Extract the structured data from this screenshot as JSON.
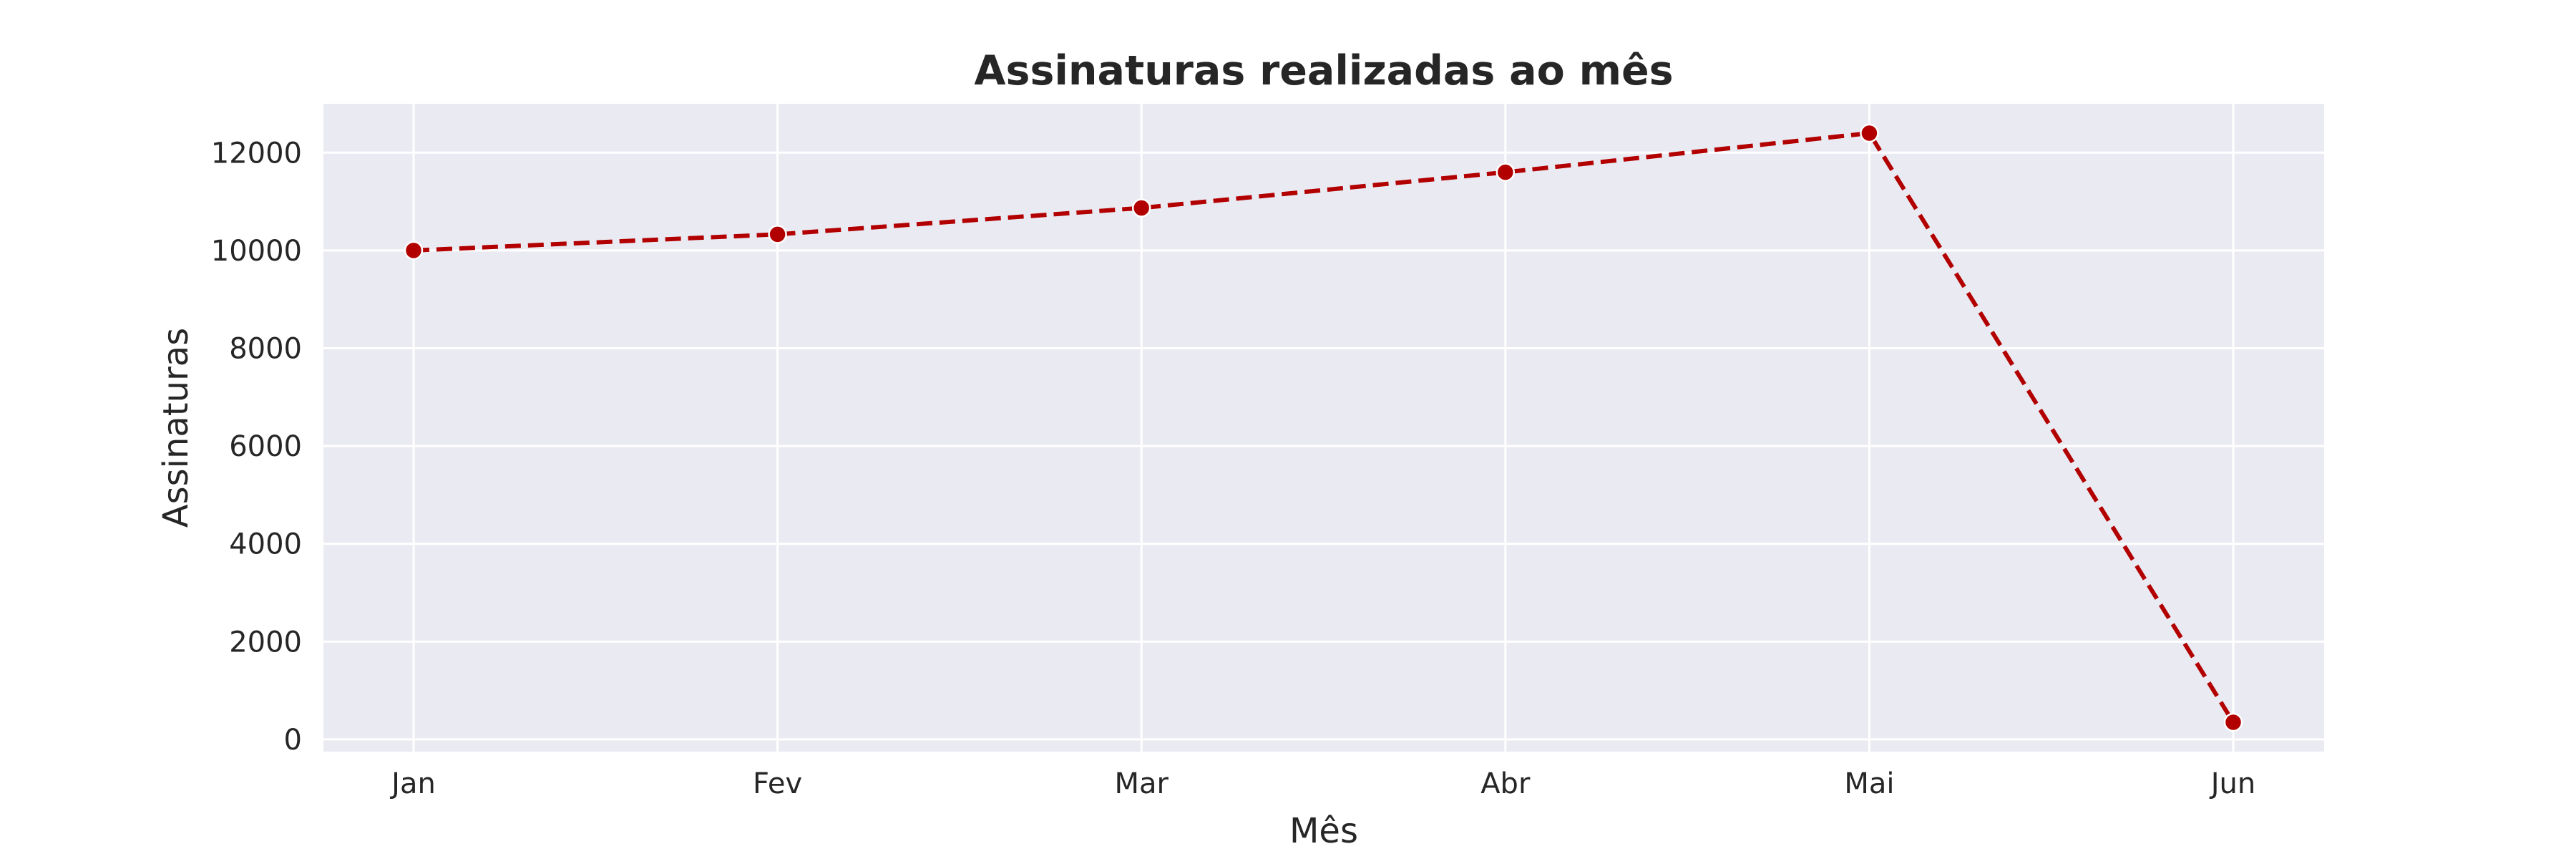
{
  "chart_data": {
    "type": "line",
    "title": "Assinaturas realizadas ao mês",
    "xlabel": "Mês",
    "ylabel": "Assinaturas",
    "categories": [
      "Jan",
      "Fev",
      "Mar",
      "Abr",
      "Mai",
      "Jun"
    ],
    "series": [
      {
        "values": [
          10000,
          10330,
          10870,
          11600,
          12400,
          350
        ],
        "color": "#b20000",
        "line_style": "dashed",
        "marker": "circle"
      }
    ],
    "ylim": [
      -250,
      13000
    ],
    "yticks": [
      0,
      2000,
      4000,
      6000,
      8000,
      10000,
      12000
    ],
    "ytick_labels": [
      "0",
      "2000",
      "4000",
      "6000",
      "8000",
      "10000",
      "12000"
    ],
    "grid": true,
    "plot_background": "#eaeaf2",
    "grid_color": "#ffffff"
  }
}
